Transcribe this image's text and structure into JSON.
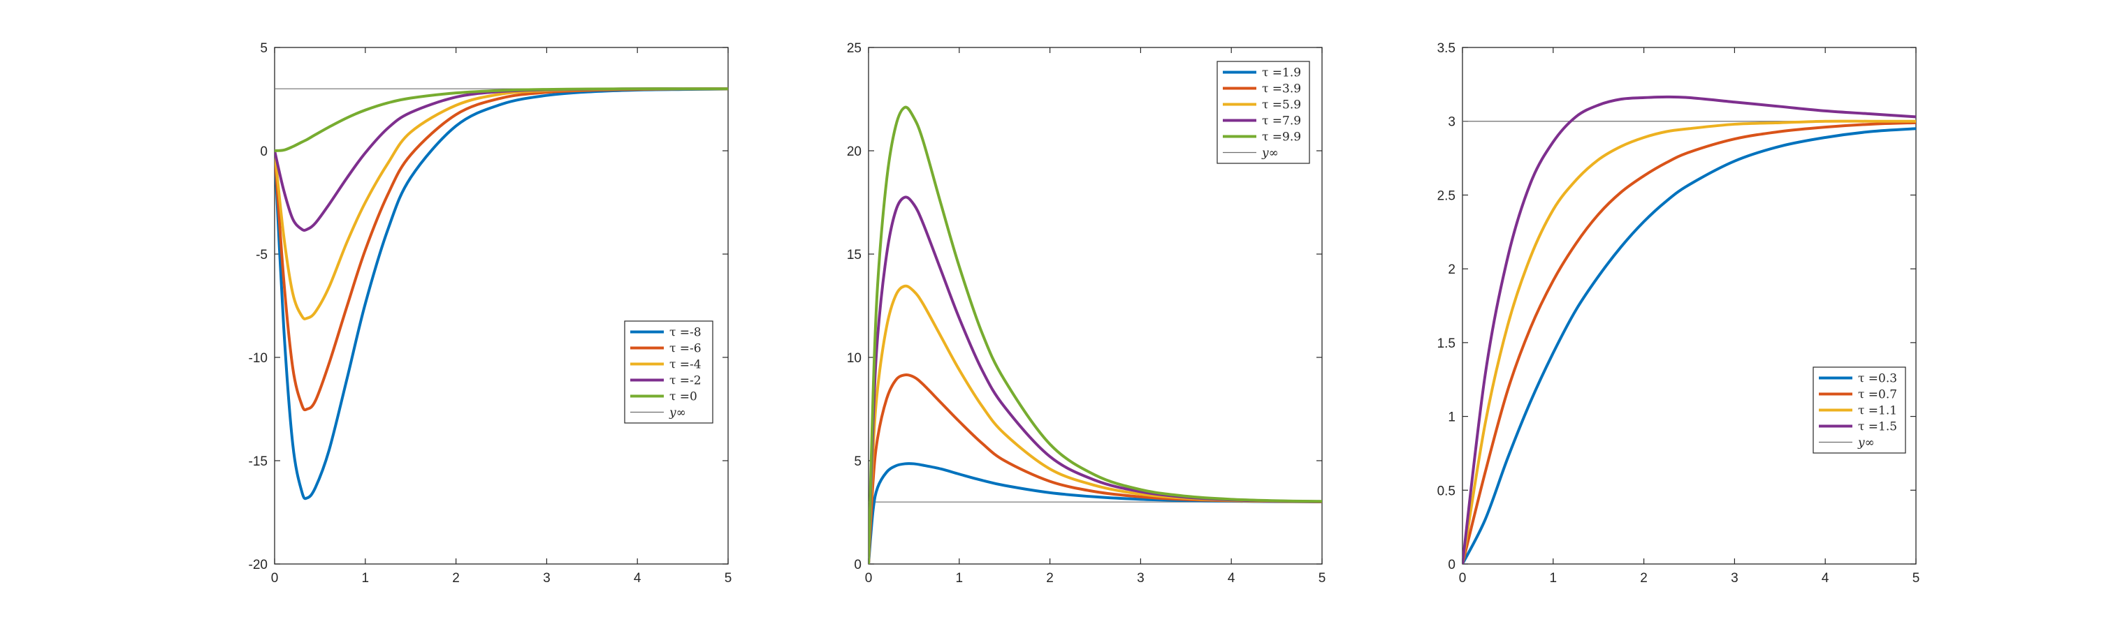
{
  "chart_data": [
    {
      "type": "line",
      "title": "",
      "xlabel": "",
      "ylabel": "",
      "xlim": [
        0,
        5
      ],
      "ylim": [
        -20,
        5
      ],
      "xticks": [
        0,
        1,
        2,
        3,
        4,
        5
      ],
      "yticks": [
        -20,
        -15,
        -10,
        -5,
        0,
        5
      ],
      "grid": false,
      "legend_position": "center-right",
      "reference_line": {
        "y": 3,
        "label": "y∞"
      },
      "x": [
        0,
        0.1,
        0.2,
        0.3,
        0.36,
        0.45,
        0.6,
        0.8,
        1.0,
        1.25,
        1.5,
        2.0,
        2.5,
        3.0,
        3.5,
        4.0,
        4.5,
        5.0
      ],
      "series": [
        {
          "name": "τ =-8",
          "color": "#0072BD",
          "values": [
            0,
            -8.5,
            -14.2,
            -16.5,
            -16.8,
            -16.3,
            -14.5,
            -11.0,
            -7.4,
            -3.8,
            -1.3,
            1.2,
            2.25,
            2.68,
            2.86,
            2.94,
            2.97,
            2.99
          ]
        },
        {
          "name": "τ =-6",
          "color": "#D95319",
          "values": [
            0,
            -6.2,
            -10.5,
            -12.3,
            -12.5,
            -12.1,
            -10.3,
            -7.5,
            -4.8,
            -2.1,
            -0.2,
            1.75,
            2.55,
            2.83,
            2.93,
            2.97,
            2.99,
            3.0
          ]
        },
        {
          "name": "τ =-4",
          "color": "#EDB120",
          "values": [
            0,
            -4.1,
            -6.9,
            -8.0,
            -8.1,
            -7.8,
            -6.6,
            -4.4,
            -2.5,
            -0.6,
            0.9,
            2.2,
            2.75,
            2.91,
            2.97,
            2.99,
            3.0,
            3.0
          ]
        },
        {
          "name": "τ =-2",
          "color": "#7E2F8E",
          "values": [
            0,
            -1.9,
            -3.3,
            -3.8,
            -3.8,
            -3.5,
            -2.6,
            -1.3,
            -0.1,
            1.1,
            1.85,
            2.6,
            2.87,
            2.95,
            2.98,
            3.0,
            3.0,
            3.0
          ]
        },
        {
          "name": "τ =0",
          "color": "#77AC30",
          "values": [
            0,
            0.03,
            0.2,
            0.42,
            0.55,
            0.78,
            1.15,
            1.6,
            1.97,
            2.32,
            2.55,
            2.8,
            2.92,
            2.97,
            2.99,
            3.0,
            3.0,
            3.0
          ]
        }
      ]
    },
    {
      "type": "line",
      "title": "",
      "xlabel": "",
      "ylabel": "",
      "xlim": [
        0,
        5
      ],
      "ylim": [
        0,
        25
      ],
      "xticks": [
        0,
        1,
        2,
        3,
        4,
        5
      ],
      "yticks": [
        0,
        5,
        10,
        15,
        20,
        25
      ],
      "grid": false,
      "legend_position": "top-right",
      "reference_line": {
        "y": 3,
        "label": "y∞"
      },
      "x": [
        0,
        0.05,
        0.1,
        0.2,
        0.3,
        0.4,
        0.5,
        0.6,
        0.8,
        1.0,
        1.25,
        1.5,
        2.0,
        2.5,
        3.0,
        3.5,
        4.0,
        4.5,
        5.0
      ],
      "series": [
        {
          "name": "τ =1.9",
          "color": "#0072BD",
          "values": [
            0,
            2.6,
            3.7,
            4.45,
            4.75,
            4.85,
            4.85,
            4.78,
            4.6,
            4.35,
            4.05,
            3.8,
            3.45,
            3.25,
            3.13,
            3.07,
            3.04,
            3.02,
            3.01
          ]
        },
        {
          "name": "τ =3.9",
          "color": "#D95319",
          "values": [
            0,
            4.0,
            6.1,
            8.0,
            8.9,
            9.15,
            9.05,
            8.7,
            7.8,
            6.9,
            5.85,
            5.0,
            4.0,
            3.5,
            3.25,
            3.12,
            3.06,
            3.03,
            3.01
          ]
        },
        {
          "name": "τ =5.9",
          "color": "#EDB120",
          "values": [
            0,
            5.5,
            8.5,
            11.5,
            13.0,
            13.45,
            13.2,
            12.6,
            11.0,
            9.4,
            7.65,
            6.3,
            4.6,
            3.8,
            3.38,
            3.18,
            3.08,
            3.04,
            3.02
          ]
        },
        {
          "name": "τ =7.9",
          "color": "#7E2F8E",
          "values": [
            0,
            6.8,
            11.0,
            15.0,
            17.1,
            17.75,
            17.4,
            16.5,
            14.2,
            11.9,
            9.4,
            7.6,
            5.2,
            4.05,
            3.5,
            3.23,
            3.1,
            3.05,
            3.02
          ]
        },
        {
          "name": "τ =9.9",
          "color": "#77AC30",
          "values": [
            0,
            8.2,
            13.5,
            18.6,
            21.2,
            22.1,
            21.6,
            20.5,
            17.4,
            14.4,
            11.2,
            8.9,
            5.8,
            4.3,
            3.6,
            3.28,
            3.13,
            3.06,
            3.03
          ]
        }
      ]
    },
    {
      "type": "line",
      "title": "",
      "xlabel": "",
      "ylabel": "",
      "xlim": [
        0,
        5
      ],
      "ylim": [
        0,
        3.5
      ],
      "xticks": [
        0,
        1,
        2,
        3,
        4,
        5
      ],
      "yticks": [
        0,
        0.5,
        1,
        1.5,
        2,
        2.5,
        3,
        3.5
      ],
      "grid": false,
      "legend_position": "center-right",
      "reference_line": {
        "y": 3,
        "label": "y∞"
      },
      "x": [
        0,
        0.25,
        0.5,
        0.75,
        1.0,
        1.25,
        1.5,
        1.75,
        2.0,
        2.25,
        2.5,
        3.0,
        3.5,
        4.0,
        4.5,
        5.0
      ],
      "series": [
        {
          "name": "τ =0.3",
          "color": "#0072BD",
          "values": [
            0,
            0.3,
            0.72,
            1.1,
            1.43,
            1.72,
            1.95,
            2.15,
            2.32,
            2.46,
            2.57,
            2.73,
            2.83,
            2.89,
            2.93,
            2.95
          ]
        },
        {
          "name": "τ =0.7",
          "color": "#D95319",
          "values": [
            0,
            0.62,
            1.18,
            1.6,
            1.92,
            2.17,
            2.37,
            2.52,
            2.63,
            2.72,
            2.79,
            2.88,
            2.93,
            2.96,
            2.98,
            2.99
          ]
        },
        {
          "name": "τ =1.1",
          "color": "#EDB120",
          "values": [
            0,
            0.95,
            1.62,
            2.08,
            2.4,
            2.6,
            2.74,
            2.83,
            2.89,
            2.93,
            2.95,
            2.98,
            2.99,
            3.0,
            3.0,
            3.0
          ]
        },
        {
          "name": "τ =1.5",
          "color": "#7E2F8E",
          "values": [
            0,
            1.28,
            2.08,
            2.58,
            2.86,
            3.03,
            3.11,
            3.15,
            3.16,
            3.165,
            3.16,
            3.13,
            3.1,
            3.07,
            3.05,
            3.03
          ]
        }
      ]
    }
  ]
}
